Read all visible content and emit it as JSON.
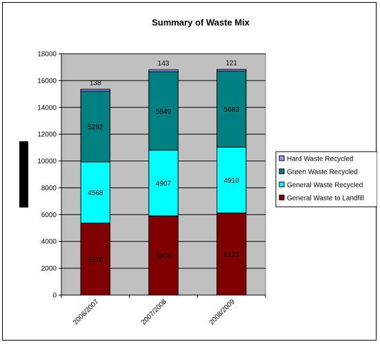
{
  "chart_data": {
    "type": "bar",
    "stacked": true,
    "title": "Summary of Waste Mix",
    "xlabel": "",
    "ylabel": "",
    "categories": [
      "2006/2007",
      "2007/2008",
      "2008/2009"
    ],
    "series": [
      {
        "name": "General Waste to Landfill",
        "values": [
          5370,
          5908,
          6123
        ],
        "color": "#800000"
      },
      {
        "name": "General Waste Recycled",
        "values": [
          4568,
          4907,
          4910
        ],
        "color": "#00ffff"
      },
      {
        "name": "Green Waste Recycled",
        "values": [
          5282,
          5849,
          5683
        ],
        "color": "#008080"
      },
      {
        "name": "Hard Waste Recycled",
        "values": [
          138,
          143,
          121
        ],
        "color": "#9999ff"
      }
    ],
    "ylim": [
      0,
      18000
    ],
    "yticks": [
      0,
      2000,
      4000,
      6000,
      8000,
      10000,
      12000,
      14000,
      16000,
      18000
    ],
    "grid": true,
    "plot_background": "#c0c0c0",
    "legend_position": "right",
    "legend_order": [
      "Hard Waste Recycled",
      "Green Waste Recycled",
      "General Waste Recycled",
      "General Waste to Landfill"
    ]
  }
}
